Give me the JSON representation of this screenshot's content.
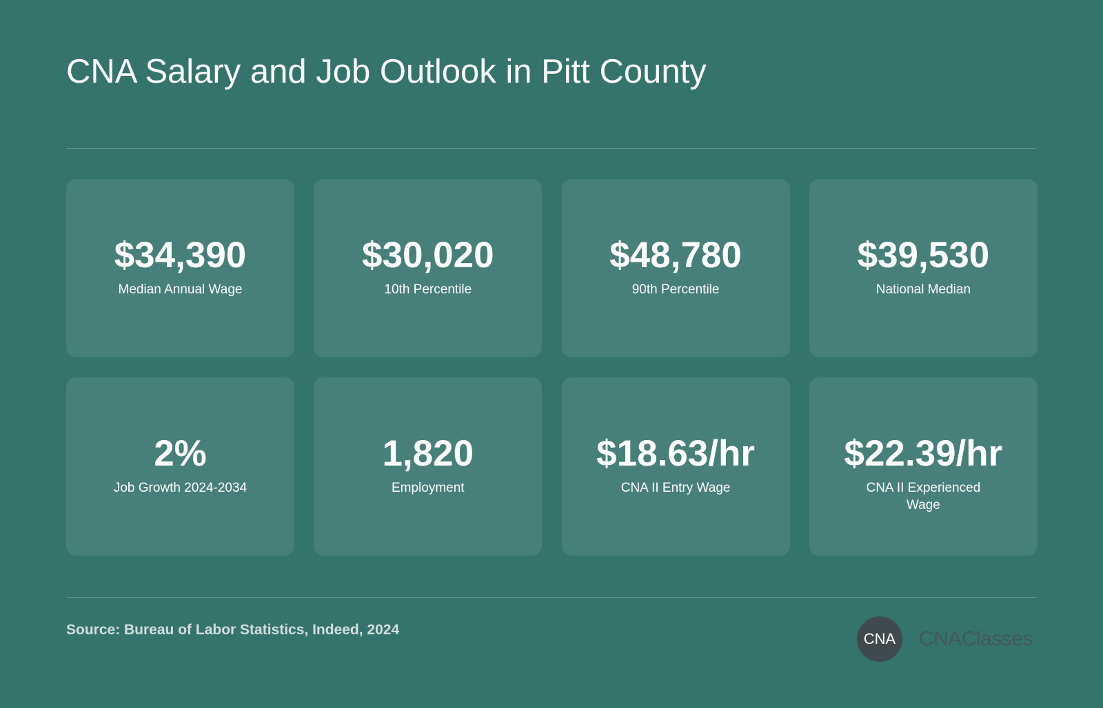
{
  "header": {
    "title": "CNA Salary and Job Outlook in Pitt County"
  },
  "stats": [
    {
      "value": "$34,390",
      "label": "Median Annual Wage"
    },
    {
      "value": "$30,020",
      "label": "10th Percentile"
    },
    {
      "value": "$48,780",
      "label": "90th Percentile"
    },
    {
      "value": "$39,530",
      "label": "National Median"
    },
    {
      "value": "2%",
      "label": "Job Growth 2024-2034"
    },
    {
      "value": "1,820",
      "label": "Employment"
    },
    {
      "value": "$18.63/hr",
      "label": "CNA II Entry Wage"
    },
    {
      "value": "$22.39/hr",
      "label": "CNA II Experienced Wage"
    }
  ],
  "footer": {
    "source": "Source: Bureau of Labor Statistics, Indeed, 2024",
    "logo_mark": "CNA",
    "logo_text": "CNAClasses"
  }
}
